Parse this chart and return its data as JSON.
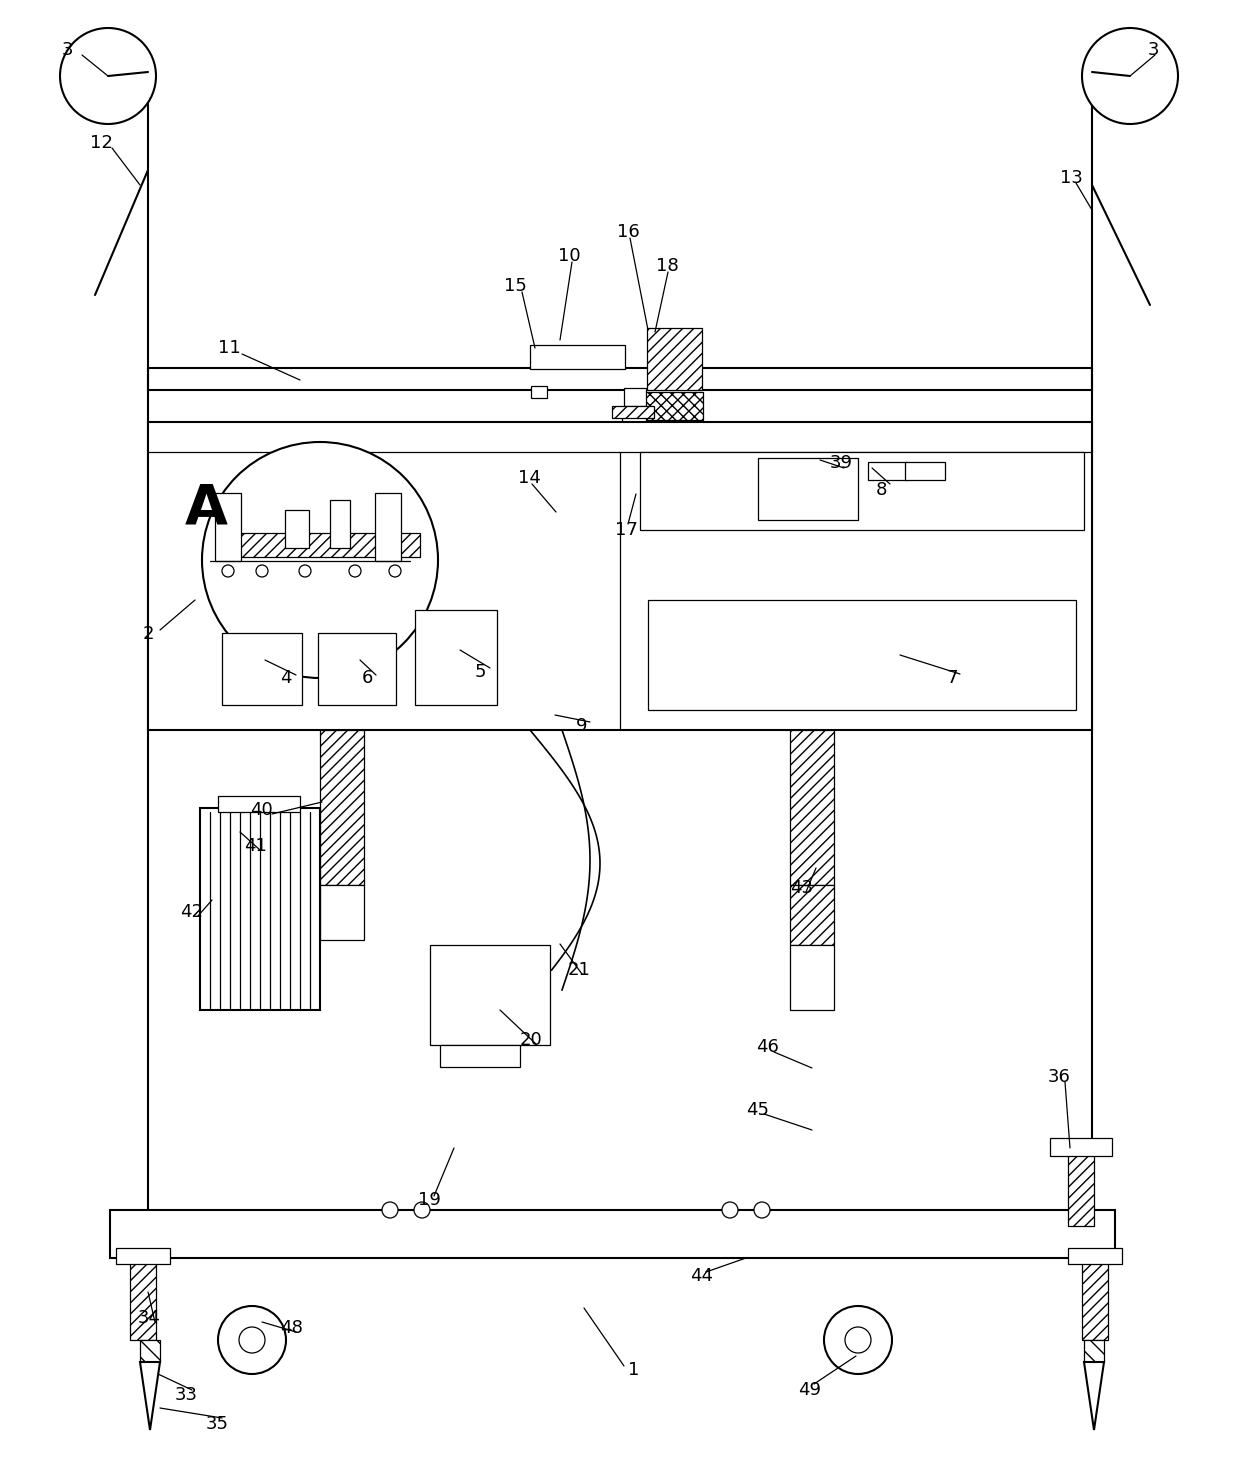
{
  "bg_color": "#ffffff",
  "line_color": "#000000",
  "lw": 1.5,
  "tlw": 0.9
}
